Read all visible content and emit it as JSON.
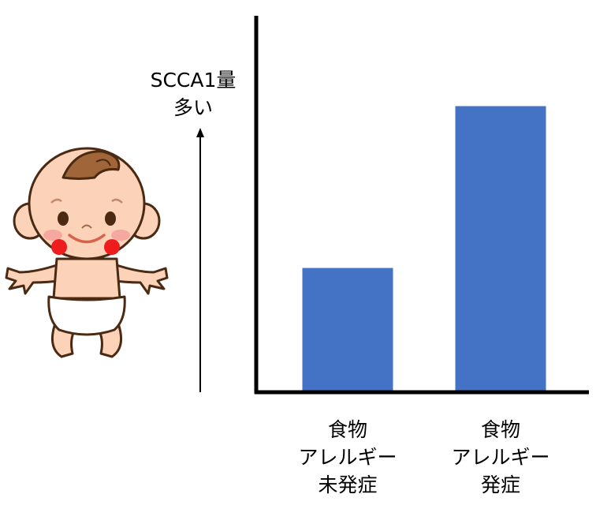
{
  "chart_data": {
    "type": "bar",
    "categories": [
      [
        "食物",
        "アレルギー",
        "未発症"
      ],
      [
        "食物",
        "アレルギー",
        "発症"
      ]
    ],
    "values": [
      0.33,
      0.76
    ],
    "ylim": [
      0,
      1
    ],
    "ylabel": [
      "SCCA1量",
      "多い"
    ],
    "y_ticks": "none",
    "grid": false,
    "legend": "none",
    "bar_color": "#4472C4",
    "illustration": "baby-icon"
  }
}
